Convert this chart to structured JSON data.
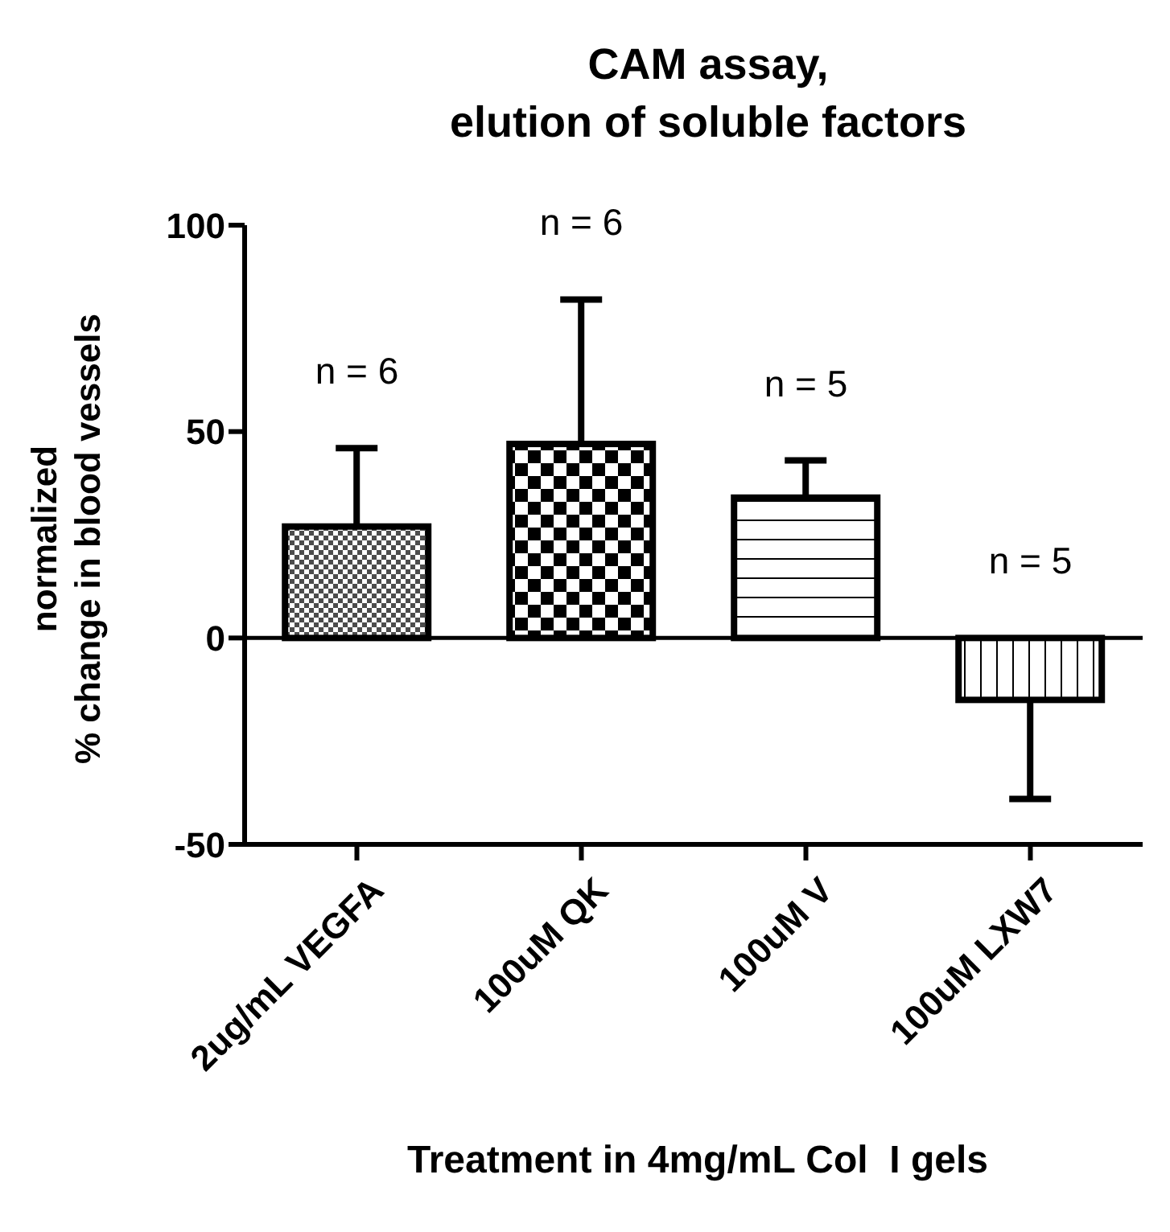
{
  "chart_data": {
    "type": "bar",
    "title": "CAM assay,\nelution of soluble factors",
    "xlabel": "Treatment in 4mg/mL Col  I gels",
    "ylabel": "normalized\n% change in blood vessels",
    "categories": [
      "2ug/mL VEGFA",
      "100uM QK",
      "100uM V",
      "100uM LXW7"
    ],
    "values": [
      27,
      47,
      34,
      -15
    ],
    "errors": [
      [
        27,
        46
      ],
      [
        47,
        82
      ],
      [
        34,
        43
      ],
      [
        -39,
        -15
      ]
    ],
    "colors": [
      "#000000",
      "#000000",
      "#000000",
      "#000000"
    ],
    "ylim": [
      -50,
      100
    ],
    "yticks": [
      -50,
      0,
      50,
      100
    ],
    "grid": false,
    "ref_lines": [
      {
        "axis": "y",
        "value": 0
      }
    ],
    "annotations": [
      "n = 6",
      "n = 6",
      "n = 5",
      "n = 5"
    ]
  }
}
